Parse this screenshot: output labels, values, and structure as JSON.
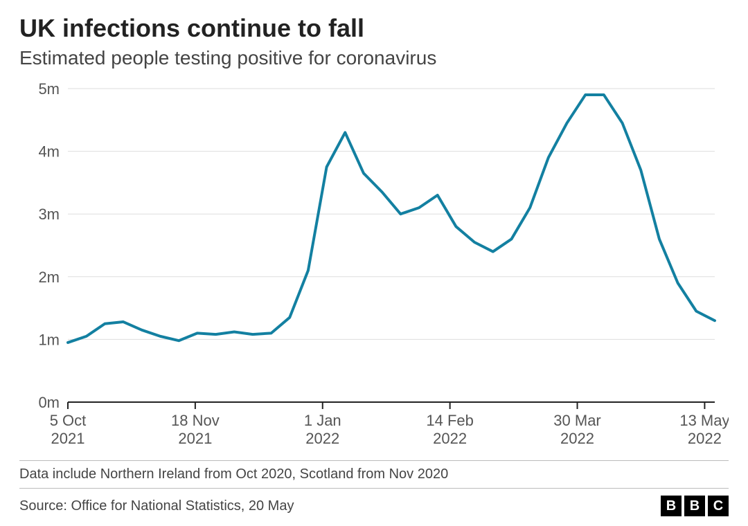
{
  "title": "UK infections continue to fall",
  "subtitle": "Estimated people testing positive for coronavirus",
  "note": "Data include Northern Ireland from Oct 2020, Scotland from Nov 2020",
  "source": "Source: Office for National Statistics, 20 May",
  "logo_letters": [
    "B",
    "B",
    "C"
  ],
  "chart": {
    "type": "line",
    "background_color": "#ffffff",
    "grid_color": "#dddddd",
    "axis_color": "#222222",
    "line_color": "#1380a1",
    "line_width": 4,
    "ylim": [
      0,
      5
    ],
    "y_ticks": [
      0,
      1,
      2,
      3,
      4,
      5
    ],
    "y_tick_labels": [
      "0m",
      "1m",
      "2m",
      "3m",
      "4m",
      "5m"
    ],
    "y_label_fontsize": 22,
    "x_index_range": [
      0,
      32
    ],
    "x_ticks": [
      0,
      6.3,
      12.6,
      18.9,
      25.2,
      31.5
    ],
    "x_tick_labels": [
      [
        "5 Oct",
        "2021"
      ],
      [
        "18 Nov",
        "2021"
      ],
      [
        "1 Jan",
        "2022"
      ],
      [
        "14 Feb",
        "2022"
      ],
      [
        "30 Mar",
        "2022"
      ],
      [
        "13 May",
        "2022"
      ]
    ],
    "x_label_fontsize": 22,
    "series": [
      {
        "name": "infections",
        "color": "#1380a1",
        "values": [
          0.95,
          1.05,
          1.25,
          1.28,
          1.15,
          1.05,
          0.98,
          1.1,
          1.08,
          1.12,
          1.08,
          1.1,
          1.35,
          2.1,
          3.75,
          4.3,
          3.65,
          3.35,
          3.0,
          3.1,
          3.3,
          2.8,
          2.55,
          2.4,
          2.6,
          3.1,
          3.9,
          4.45,
          4.9,
          4.9,
          4.45,
          3.7,
          2.6,
          1.9,
          1.45,
          1.3
        ]
      }
    ]
  }
}
